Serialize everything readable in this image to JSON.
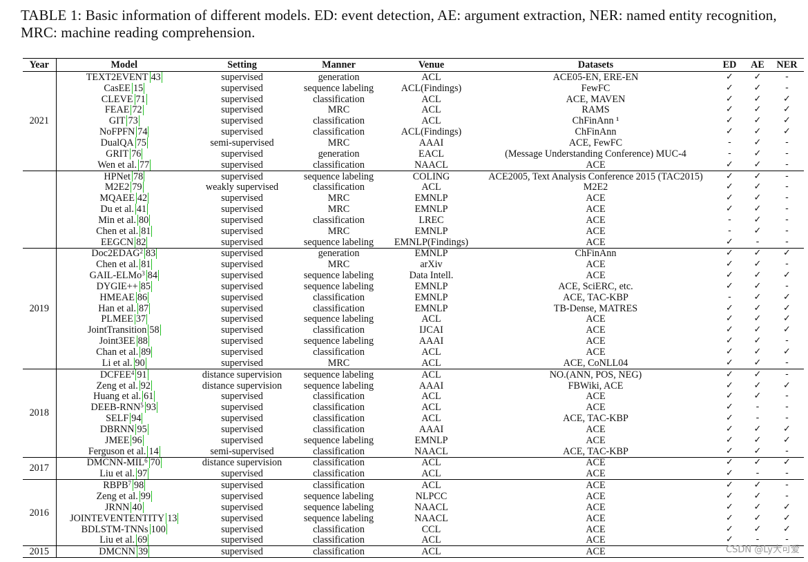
{
  "caption": "TABLE 1: Basic information of different models. ED: event detection, AE: argument extraction, NER: named entity recognition, MRC: machine reading comprehension.",
  "headers": [
    "Year",
    "Model",
    "Setting",
    "Manner",
    "Venue",
    "Datasets",
    "ED",
    "AE",
    "NER"
  ],
  "groups": [
    {
      "year": "2021",
      "rows": [
        {
          "model": "TEXT2EVENT",
          "sup": "",
          "ref": "43",
          "setting": "supervised",
          "manner": "generation",
          "venue": "ACL",
          "datasets": "ACE05-EN, ERE-EN",
          "ed": "✓",
          "ae": "✓",
          "ner": "-"
        },
        {
          "model": "CasEE",
          "sup": "",
          "ref": "15",
          "setting": "supervised",
          "manner": "sequence labeling",
          "venue": "ACL(Findings)",
          "datasets": "FewFC",
          "ed": "✓",
          "ae": "✓",
          "ner": "-"
        },
        {
          "model": "CLEVE",
          "sup": "",
          "ref": "71",
          "setting": "supervised",
          "manner": "classification",
          "venue": "ACL",
          "datasets": "ACE, MAVEN",
          "ed": "✓",
          "ae": "✓",
          "ner": "✓"
        },
        {
          "model": "FEAE",
          "sup": "",
          "ref": "72",
          "setting": "supervised",
          "manner": "MRC",
          "venue": "ACL",
          "datasets": "RAMS",
          "ed": "✓",
          "ae": "✓",
          "ner": "✓"
        },
        {
          "model": "GIT",
          "sup": "",
          "ref": "73",
          "setting": "supervised",
          "manner": "classification",
          "venue": "ACL",
          "datasets": "ChFinAnn ¹",
          "ed": "✓",
          "ae": "✓",
          "ner": "✓"
        },
        {
          "model": "NoFPFN",
          "sup": "",
          "ref": "74",
          "setting": "supervised",
          "manner": "classification",
          "venue": "ACL(Findings)",
          "datasets": "ChFinAnn",
          "ed": "✓",
          "ae": "✓",
          "ner": "✓"
        },
        {
          "model": "DualQA",
          "sup": "",
          "ref": "75",
          "setting": "semi-supervised",
          "manner": "MRC",
          "venue": "AAAI",
          "datasets": "ACE, FewFC",
          "ed": "-",
          "ae": "✓",
          "ner": "-"
        },
        {
          "model": "GRIT",
          "sup": "",
          "ref": "76",
          "setting": "supervised",
          "manner": "generation",
          "venue": "EACL",
          "datasets": "(Message Understanding Conference) MUC-4",
          "ed": "-",
          "ae": "✓",
          "ner": "-"
        },
        {
          "model": "Wen et al.",
          "sup": "",
          "ref": "77",
          "setting": "supervised",
          "manner": "classification",
          "venue": "NAACL",
          "datasets": "ACE",
          "ed": "✓",
          "ae": "✓",
          "ner": "-"
        }
      ]
    },
    {
      "year": "",
      "rows": [
        {
          "model": "HPNet",
          "sup": "",
          "ref": "78",
          "setting": "supervised",
          "manner": "sequence labeling",
          "venue": "COLING",
          "datasets": "ACE2005, Text Analysis Conference 2015 (TAC2015)",
          "ed": "✓",
          "ae": "✓",
          "ner": "-"
        },
        {
          "model": "M2E2",
          "sup": "",
          "ref": "79",
          "setting": "weakly supervised",
          "manner": "classification",
          "venue": "ACL",
          "datasets": "M2E2",
          "ed": "✓",
          "ae": "✓",
          "ner": "-"
        },
        {
          "model": "MQAEE",
          "sup": "",
          "ref": "42",
          "setting": "supervised",
          "manner": "MRC",
          "venue": "EMNLP",
          "datasets": "ACE",
          "ed": "✓",
          "ae": "✓",
          "ner": "-"
        },
        {
          "model": "Du et al.",
          "sup": "",
          "ref": "41",
          "setting": "supervised",
          "manner": "MRC",
          "venue": "EMNLP",
          "datasets": "ACE",
          "ed": "✓",
          "ae": "✓",
          "ner": "-"
        },
        {
          "model": "Min et al.",
          "sup": "",
          "ref": "80",
          "setting": "supervised",
          "manner": "classification",
          "venue": "LREC",
          "datasets": "ACE",
          "ed": "-",
          "ae": "✓",
          "ner": "-"
        },
        {
          "model": "Chen et al.",
          "sup": "",
          "ref": "81",
          "setting": "supervised",
          "manner": "MRC",
          "venue": "EMNLP",
          "datasets": "ACE",
          "ed": "-",
          "ae": "✓",
          "ner": "-"
        },
        {
          "model": "EEGCN",
          "sup": "",
          "ref": "82",
          "setting": "supervised",
          "manner": "sequence labeling",
          "venue": "EMNLP(Findings)",
          "datasets": "ACE",
          "ed": "✓",
          "ae": "-",
          "ner": "-"
        }
      ]
    },
    {
      "year": "2019",
      "rows": [
        {
          "model": "Doc2EDAG",
          "sup": "2",
          "ref": "83",
          "setting": "supervised",
          "manner": "generation",
          "venue": "EMNLP",
          "datasets": "ChFinAnn",
          "ed": "✓",
          "ae": "✓",
          "ner": "✓"
        },
        {
          "model": "Chen et al.",
          "sup": "",
          "ref": "81",
          "setting": "supervised",
          "manner": "MRC",
          "venue": "arXiv",
          "datasets": "ACE",
          "ed": "✓",
          "ae": "✓",
          "ner": "-"
        },
        {
          "model": "GAIL-ELMo",
          "sup": "3",
          "ref": "84",
          "setting": "supervised",
          "manner": "sequence labeling",
          "venue": "Data Intell.",
          "datasets": "ACE",
          "ed": "✓",
          "ae": "✓",
          "ner": "✓"
        },
        {
          "model": "DYGIE++",
          "sup": "",
          "ref": "85",
          "setting": "supervised",
          "manner": "sequence labeling",
          "venue": "EMNLP",
          "datasets": "ACE, SciERC, etc.",
          "ed": "✓",
          "ae": "✓",
          "ner": "-"
        },
        {
          "model": "HMEAE",
          "sup": "",
          "ref": "86",
          "setting": "supervised",
          "manner": "classification",
          "venue": "EMNLP",
          "datasets": "ACE, TAC-KBP",
          "ed": "-",
          "ae": "✓",
          "ner": "✓"
        },
        {
          "model": "Han et al.",
          "sup": "",
          "ref": "87",
          "setting": "supervised",
          "manner": "classification",
          "venue": "EMNLP",
          "datasets": "TB-Dense, MATRES",
          "ed": "✓",
          "ae": "✓",
          "ner": "✓"
        },
        {
          "model": "PLMEE",
          "sup": "",
          "ref": "37",
          "setting": "supervised",
          "manner": "sequence labeling",
          "venue": "ACL",
          "datasets": "ACE",
          "ed": "✓",
          "ae": "✓",
          "ner": "✓"
        },
        {
          "model": "JointTransition",
          "sup": "",
          "ref": "58",
          "setting": "supervised",
          "manner": "classification",
          "venue": "IJCAI",
          "datasets": "ACE",
          "ed": "✓",
          "ae": "✓",
          "ner": "✓"
        },
        {
          "model": "Joint3EE",
          "sup": "",
          "ref": "88",
          "setting": "supervised",
          "manner": "sequence labeling",
          "venue": "AAAI",
          "datasets": "ACE",
          "ed": "✓",
          "ae": "✓",
          "ner": "-"
        },
        {
          "model": "Chan et al.",
          "sup": "",
          "ref": "89",
          "setting": "supervised",
          "manner": "classification",
          "venue": "ACL",
          "datasets": "ACE",
          "ed": "✓",
          "ae": "✓",
          "ner": "✓"
        },
        {
          "model": "Li et al.",
          "sup": "",
          "ref": "90",
          "setting": "supervised",
          "manner": "MRC",
          "venue": "ACL",
          "datasets": "ACE, CoNLL04",
          "ed": "✓",
          "ae": "✓",
          "ner": "-"
        }
      ]
    },
    {
      "year": "2018",
      "rows": [
        {
          "model": "DCFEE",
          "sup": "4",
          "ref": "91",
          "setting": "distance supervision",
          "manner": "sequence labeling",
          "venue": "ACL",
          "datasets": "NO.(ANN, POS, NEG)",
          "ed": "✓",
          "ae": "✓",
          "ner": "-"
        },
        {
          "model": "Zeng et al.",
          "sup": "",
          "ref": "92",
          "setting": "distance supervision",
          "manner": "sequence labeling",
          "venue": "AAAI",
          "datasets": "FBWiki, ACE",
          "ed": "✓",
          "ae": "✓",
          "ner": "✓"
        },
        {
          "model": "Huang et al.",
          "sup": "",
          "ref": "61",
          "setting": "supervised",
          "manner": "classification",
          "venue": "ACL",
          "datasets": "ACE",
          "ed": "✓",
          "ae": "✓",
          "ner": "-"
        },
        {
          "model": "DEEB-RNN",
          "sup": "5",
          "ref": "93",
          "setting": "supervised",
          "manner": "classification",
          "venue": "ACL",
          "datasets": "ACE",
          "ed": "✓",
          "ae": "-",
          "ner": "-"
        },
        {
          "model": "SELF",
          "sup": "",
          "ref": "94",
          "setting": "supervised",
          "manner": "classification",
          "venue": "ACL",
          "datasets": "ACE, TAC-KBP",
          "ed": "✓",
          "ae": "-",
          "ner": "-"
        },
        {
          "model": "DBRNN",
          "sup": "",
          "ref": "95",
          "setting": "supervised",
          "manner": "classification",
          "venue": "AAAI",
          "datasets": "ACE",
          "ed": "✓",
          "ae": "✓",
          "ner": "✓"
        },
        {
          "model": "JMEE",
          "sup": "",
          "ref": "96",
          "setting": "supervised",
          "manner": "sequence labeling",
          "venue": "EMNLP",
          "datasets": "ACE",
          "ed": "✓",
          "ae": "✓",
          "ner": "✓"
        },
        {
          "model": "Ferguson et al.",
          "sup": "",
          "ref": "14",
          "setting": "semi-supervised",
          "manner": "classification",
          "venue": "NAACL",
          "datasets": "ACE, TAC-KBP",
          "ed": "✓",
          "ae": "✓",
          "ner": "-"
        }
      ]
    },
    {
      "year": "2017",
      "rows": [
        {
          "model": "DMCNN-MIL",
          "sup": "6",
          "ref": "70",
          "setting": "distance supervision",
          "manner": "classification",
          "venue": "ACL",
          "datasets": "ACE",
          "ed": "✓",
          "ae": "✓",
          "ner": "✓"
        },
        {
          "model": "Liu et al.",
          "sup": "",
          "ref": "97",
          "setting": "supervised",
          "manner": "classification",
          "venue": "ACL",
          "datasets": "ACE",
          "ed": "✓",
          "ae": "-",
          "ner": "-"
        }
      ]
    },
    {
      "year": "2016",
      "rows": [
        {
          "model": "RBPB",
          "sup": "7",
          "ref": "98",
          "setting": "supervised",
          "manner": "classification",
          "venue": "ACL",
          "datasets": "ACE",
          "ed": "✓",
          "ae": "✓",
          "ner": "-"
        },
        {
          "model": "Zeng et al.",
          "sup": "",
          "ref": "99",
          "setting": "supervised",
          "manner": "sequence labeling",
          "venue": "NLPCC",
          "datasets": "ACE",
          "ed": "✓",
          "ae": "✓",
          "ner": "-"
        },
        {
          "model": "JRNN",
          "sup": "",
          "ref": "40",
          "setting": "supervised",
          "manner": "sequence labeling",
          "venue": "NAACL",
          "datasets": "ACE",
          "ed": "✓",
          "ae": "✓",
          "ner": "✓"
        },
        {
          "model": "JOINTEVENTENTITY",
          "sup": "",
          "ref": "13",
          "setting": "supervised",
          "manner": "sequence labeling",
          "venue": "NAACL",
          "datasets": "ACE",
          "ed": "✓",
          "ae": "✓",
          "ner": "✓"
        },
        {
          "model": "BDLSTM-TNNs",
          "sup": "",
          "ref": "100",
          "setting": "supervised",
          "manner": "classification",
          "venue": "CCL",
          "datasets": "ACE",
          "ed": "✓",
          "ae": "✓",
          "ner": "✓"
        },
        {
          "model": "Liu et al.",
          "sup": "",
          "ref": "69",
          "setting": "supervised",
          "manner": "classification",
          "venue": "ACL",
          "datasets": "ACE",
          "ed": "✓",
          "ae": "-",
          "ner": "-"
        }
      ]
    },
    {
      "year": "2015",
      "rows": [
        {
          "model": "DMCNN",
          "sup": "",
          "ref": "39",
          "setting": "supervised",
          "manner": "classification",
          "venue": "ACL",
          "datasets": "ACE",
          "ed": "",
          "ae": "",
          "ner": ""
        }
      ]
    }
  ],
  "watermark": "CSDN @Ly大可爱"
}
